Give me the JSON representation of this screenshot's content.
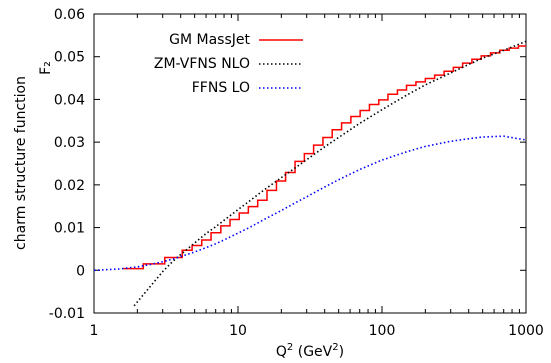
{
  "chart_data": {
    "type": "line",
    "title": "",
    "xlabel": "Q² (GeV²)",
    "xlabel_parts": {
      "q": "Q",
      "q_exp": "2",
      "unit_open": " (GeV",
      "unit_exp": "2",
      "unit_close": ")"
    },
    "ylabel": "charm structure function",
    "ylabel_right": "F₂",
    "x_scale": "log",
    "xlim": [
      1,
      1000
    ],
    "ylim": [
      -0.01,
      0.06
    ],
    "xticks": [
      1,
      10,
      100,
      1000
    ],
    "xtick_labels": [
      "1",
      "10",
      "100",
      "1000"
    ],
    "yticks": [
      -0.01,
      0,
      0.01,
      0.02,
      0.03,
      0.04,
      0.05,
      0.06
    ],
    "ytick_labels": [
      "-0.01",
      "0",
      "0.01",
      "0.02",
      "0.03",
      "0.04",
      "0.05",
      "0.06"
    ],
    "legend_position": "top-left",
    "series": [
      {
        "name": "GM MassJet",
        "color": "#ff0000",
        "style": "step",
        "edges": [
          1.6,
          2.2,
          3.1,
          4.1,
          4.8,
          5.6,
          6.5,
          7.6,
          8.8,
          10.2,
          11.8,
          13.7,
          15.9,
          18.5,
          21.4,
          24.9,
          28.9,
          33.5,
          38.9,
          45.1,
          52.4,
          60.8,
          70.5,
          81.8,
          95,
          110,
          128,
          148,
          172,
          200,
          232,
          270,
          313,
          363,
          421,
          489,
          567,
          658,
          764,
          886,
          1000
        ],
        "values": [
          0.0004,
          0.0015,
          0.003,
          0.0047,
          0.0058,
          0.0071,
          0.0088,
          0.0104,
          0.0119,
          0.0134,
          0.0149,
          0.0164,
          0.0187,
          0.0209,
          0.0229,
          0.0255,
          0.0273,
          0.0293,
          0.0311,
          0.0329,
          0.0345,
          0.036,
          0.0374,
          0.0388,
          0.0399,
          0.0412,
          0.0422,
          0.0433,
          0.0441,
          0.0449,
          0.0457,
          0.0466,
          0.0475,
          0.0485,
          0.0494,
          0.0502,
          0.0509,
          0.0515,
          0.052,
          0.0525
        ]
      },
      {
        "name": "ZM-VFNS NLO",
        "color": "#000000",
        "style": "dotted",
        "x": [
          1.9,
          2.5,
          3.0,
          3.5,
          4.0,
          4.5,
          5.0,
          6.0,
          7.0,
          8.0,
          10,
          12,
          15,
          20,
          25,
          30,
          40,
          50,
          70,
          100,
          150,
          200,
          300,
          400,
          500,
          700,
          1000
        ],
        "y": [
          -0.0083,
          -0.0035,
          -0.0003,
          0.002,
          0.0037,
          0.0051,
          0.0064,
          0.0086,
          0.0102,
          0.0117,
          0.0142,
          0.0162,
          0.0187,
          0.0217,
          0.024,
          0.0259,
          0.0289,
          0.0311,
          0.0344,
          0.0376,
          0.0411,
          0.0434,
          0.0462,
          0.0482,
          0.0497,
          0.0515,
          0.0536
        ]
      },
      {
        "name": "FFNS LO",
        "color": "#0000ff",
        "style": "dotted",
        "x": [
          1.0,
          1.5,
          2.0,
          2.5,
          3.0,
          3.5,
          4.0,
          5.0,
          6.0,
          7.0,
          8.0,
          10,
          12,
          15,
          20,
          25,
          30,
          40,
          50,
          70,
          100,
          150,
          200,
          300,
          400,
          500,
          700,
          1000
        ],
        "y": [
          0.0,
          0.0003,
          0.0008,
          0.0014,
          0.002,
          0.0026,
          0.0032,
          0.0043,
          0.0053,
          0.0062,
          0.0071,
          0.0087,
          0.01,
          0.0118,
          0.014,
          0.0158,
          0.0172,
          0.0195,
          0.0212,
          0.0236,
          0.0258,
          0.0278,
          0.029,
          0.0302,
          0.0308,
          0.0312,
          0.0314,
          0.0305
        ]
      }
    ]
  }
}
